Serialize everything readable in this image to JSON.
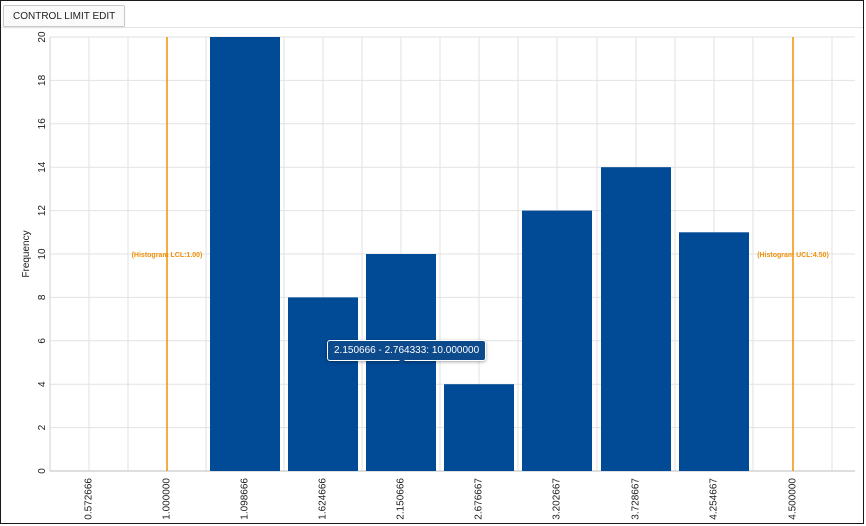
{
  "toolbar": {
    "control_limit_edit_label": "CONTROL LIMIT EDIT"
  },
  "colors": {
    "bar": "#004a96",
    "control_line": "#f0900a",
    "grid": "#e2e2e2",
    "tooltip_bg": "#0d4a8c"
  },
  "tooltip": {
    "text": "2.150666 - 2.764333: 10.000000"
  },
  "chart_data": {
    "type": "bar",
    "ylabel": "Frequency",
    "xlabel": "",
    "ylim": [
      0,
      20
    ],
    "y_ticks": [
      0,
      2,
      4,
      6,
      8,
      10,
      12,
      14,
      16,
      18,
      20
    ],
    "x_tick_labels": [
      "0.572666",
      "1.000000",
      "1.098666",
      "1.624666",
      "2.150666",
      "2.676667",
      "3.202667",
      "3.728667",
      "4.254667",
      "4.500000"
    ],
    "values": [
      20,
      8,
      10,
      4,
      12,
      14,
      11
    ],
    "control_limits": [
      {
        "label": "(Histogram LCL:1.00)"
      },
      {
        "label": "(Histogram UCL:4.50)"
      }
    ],
    "grid": true
  }
}
